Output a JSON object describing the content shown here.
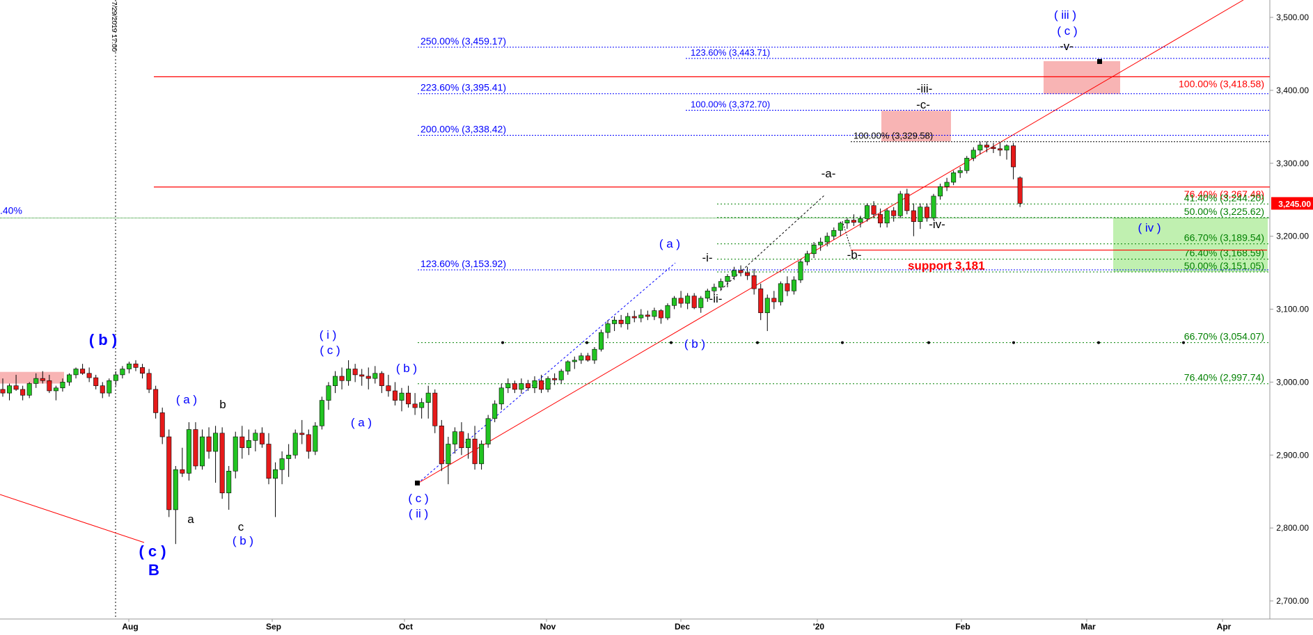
{
  "chart_data": {
    "type": "candlestick",
    "x_ticks": [
      "Aug",
      "Sep",
      "Oct",
      "Nov",
      "Dec",
      "'20",
      "Feb",
      "Mar",
      "Apr"
    ],
    "y_ticks": [
      "3,500.00",
      "3,400.00",
      "3,300.00",
      "3,200.00",
      "3,100.00",
      "3,000.00",
      "2,900.00",
      "2,800.00",
      "2,700.00"
    ],
    "ylim": [
      2684,
      3522
    ],
    "y_tick_values": [
      3500,
      3400,
      3300,
      3200,
      3100,
      3000,
      2900,
      2800,
      2700
    ],
    "last_price_label": "3,245.00",
    "last_price": 3245,
    "vertical_marker_label": "7/29/2019 17:00",
    "left_edge_label": ".40%",
    "fib_levels_left": [
      {
        "label": "250.00% (3,459.17)",
        "value": 3459.17
      },
      {
        "label": "223.60% (3,395.41)",
        "value": 3395.41
      },
      {
        "label": "200.00% (3,338.42)",
        "value": 3338.42
      },
      {
        "label": "123.60% (3,153.92)",
        "value": 3153.92
      }
    ],
    "fib_levels_mid": [
      {
        "label": "123.60% (3,443.71)",
        "value": 3443.71
      },
      {
        "label": "100.00% (3,372.70)",
        "value": 3372.7
      }
    ],
    "fib_level_black": {
      "label": "100.00% (3,329.58)",
      "value": 3329.58
    },
    "red_levels": [
      {
        "label": "100.00% (3,418.58)",
        "value": 3418.58
      },
      {
        "label": "76.40% (3,267.48)",
        "value": 3267.48
      }
    ],
    "green_levels": [
      {
        "label": "41.40% (3,244.20)",
        "value": 3244.2
      },
      {
        "label": "50.00% (3,225.62)",
        "value": 3225.62
      },
      {
        "label": "66.70% (3,189.54)",
        "value": 3189.54
      },
      {
        "label": "76.40% (3,168.59)",
        "value": 3168.59
      },
      {
        "label": "50.00% (3,151.05)",
        "value": 3151.05
      },
      {
        "label": "66.70% (3,054.07)",
        "value": 3054.07
      },
      {
        "label": "76.40% (2,997.74)",
        "value": 2997.74
      }
    ],
    "support_label": "support 3,181",
    "wave_labels": [
      {
        "text": "( b )",
        "color": "#0000ff",
        "bold": true
      },
      {
        "text": "( c )",
        "color": "#0000ff",
        "bold": true
      },
      {
        "text": "B",
        "color": "#0000ff",
        "bold": true
      },
      {
        "text": "( a )",
        "color": "#0000ff",
        "bold": false
      },
      {
        "text": "a",
        "color": "#000000",
        "bold": false
      },
      {
        "text": "b",
        "color": "#000000",
        "bold": false
      },
      {
        "text": "c",
        "color": "#000000",
        "bold": false
      },
      {
        "text": "( b )",
        "color": "#0000ff",
        "bold": false
      },
      {
        "text": "( i )",
        "color": "#0000ff",
        "bold": false
      },
      {
        "text": "( c )",
        "color": "#0000ff",
        "bold": false
      },
      {
        "text": "( a )",
        "color": "#0000ff",
        "bold": false
      },
      {
        "text": "( b )",
        "color": "#0000ff",
        "bold": false
      },
      {
        "text": "( c )",
        "color": "#0000ff",
        "bold": false
      },
      {
        "text": "( ii )",
        "color": "#0000ff",
        "bold": false
      },
      {
        "text": "( a )",
        "color": "#0000ff",
        "bold": false
      },
      {
        "text": "( b )",
        "color": "#0000ff",
        "bold": false
      },
      {
        "text": "-i-",
        "color": "#000000",
        "bold": false
      },
      {
        "text": "-ii-",
        "color": "#000000",
        "bold": false
      },
      {
        "text": "-a-",
        "color": "#000000",
        "bold": false
      },
      {
        "text": "-b-",
        "color": "#000000",
        "bold": false
      },
      {
        "text": "-iii-",
        "color": "#000000",
        "bold": false
      },
      {
        "text": "-c-",
        "color": "#000000",
        "bold": false
      },
      {
        "text": "-iv-",
        "color": "#000000",
        "bold": false
      },
      {
        "text": "-v-",
        "color": "#000000",
        "bold": false
      },
      {
        "text": "( iii )",
        "color": "#0000ff",
        "bold": false
      },
      {
        "text": "( c )",
        "color": "#0000ff",
        "bold": false
      },
      {
        "text": "( iv )",
        "color": "#0000ff",
        "bold": false
      }
    ],
    "candles": [
      [
        2990,
        3005,
        2980,
        2985
      ],
      [
        2985,
        2998,
        2975,
        2995
      ],
      [
        2995,
        3010,
        2988,
        2990
      ],
      [
        2990,
        2995,
        2975,
        2982
      ],
      [
        2982,
        3000,
        2978,
        2998
      ],
      [
        2998,
        3012,
        2992,
        3005
      ],
      [
        3005,
        3015,
        2998,
        3002
      ],
      [
        3002,
        3010,
        2985,
        2988
      ],
      [
        2988,
        2995,
        2975,
        2992
      ],
      [
        2992,
        3005,
        2987,
        3000
      ],
      [
        3000,
        3012,
        2995,
        3010
      ],
      [
        3010,
        3020,
        3005,
        3018
      ],
      [
        3018,
        3025,
        3010,
        3012
      ],
      [
        3012,
        3020,
        3000,
        3006
      ],
      [
        3006,
        3010,
        2990,
        2995
      ],
      [
        2995,
        3000,
        2978,
        2985
      ],
      [
        2985,
        3005,
        2980,
        3002
      ],
      [
        3002,
        3015,
        2995,
        3010
      ],
      [
        3010,
        3022,
        3005,
        3018
      ],
      [
        3018,
        3028,
        3012,
        3025
      ],
      [
        3025,
        3030,
        3015,
        3020
      ],
      [
        3020,
        3025,
        3005,
        3012
      ],
      [
        3012,
        3018,
        2985,
        2990
      ],
      [
        2990,
        2995,
        2950,
        2958
      ],
      [
        2958,
        2965,
        2915,
        2925
      ],
      [
        2925,
        2935,
        2815,
        2825
      ],
      [
        2825,
        2885,
        2778,
        2880
      ],
      [
        2880,
        2910,
        2870,
        2875
      ],
      [
        2875,
        2945,
        2865,
        2935
      ],
      [
        2935,
        2945,
        2880,
        2885
      ],
      [
        2885,
        2935,
        2880,
        2925
      ],
      [
        2925,
        2938,
        2895,
        2905
      ],
      [
        2905,
        2940,
        2862,
        2930
      ],
      [
        2930,
        2938,
        2840,
        2848
      ],
      [
        2848,
        2885,
        2825,
        2878
      ],
      [
        2878,
        2932,
        2868,
        2925
      ],
      [
        2925,
        2940,
        2895,
        2910
      ],
      [
        2910,
        2935,
        2900,
        2920
      ],
      [
        2920,
        2935,
        2905,
        2930
      ],
      [
        2930,
        2938,
        2910,
        2915
      ],
      [
        2915,
        2930,
        2860,
        2868
      ],
      [
        2868,
        2890,
        2815,
        2880
      ],
      [
        2880,
        2905,
        2860,
        2895
      ],
      [
        2895,
        2915,
        2870,
        2900
      ],
      [
        2900,
        2935,
        2895,
        2930
      ],
      [
        2930,
        2948,
        2915,
        2928
      ],
      [
        2928,
        2935,
        2895,
        2905
      ],
      [
        2905,
        2945,
        2900,
        2940
      ],
      [
        2940,
        2980,
        2935,
        2975
      ],
      [
        2975,
        3000,
        2962,
        2995
      ],
      [
        2995,
        3015,
        2985,
        3008
      ],
      [
        3008,
        3020,
        2990,
        3002
      ],
      [
        3002,
        3030,
        2995,
        3018
      ],
      [
        3018,
        3025,
        3000,
        3010
      ],
      [
        3010,
        3018,
        2995,
        3008
      ],
      [
        3008,
        3020,
        2990,
        3005
      ],
      [
        3005,
        3022,
        2998,
        3012
      ],
      [
        3012,
        3015,
        2985,
        2995
      ],
      [
        2995,
        3010,
        2980,
        2988
      ],
      [
        2988,
        3000,
        2968,
        2975
      ],
      [
        2975,
        2992,
        2960,
        2985
      ],
      [
        2985,
        2995,
        2965,
        2970
      ],
      [
        2970,
        2985,
        2955,
        2965
      ],
      [
        2965,
        2978,
        2950,
        2972
      ],
      [
        2972,
        2995,
        2950,
        2985
      ],
      [
        2985,
        2990,
        2930,
        2940
      ],
      [
        2940,
        2948,
        2878,
        2888
      ],
      [
        2888,
        2925,
        2860,
        2915
      ],
      [
        2915,
        2938,
        2902,
        2932
      ],
      [
        2932,
        2945,
        2900,
        2910
      ],
      [
        2910,
        2930,
        2895,
        2922
      ],
      [
        2922,
        2940,
        2880,
        2888
      ],
      [
        2888,
        2920,
        2880,
        2915
      ],
      [
        2915,
        2955,
        2910,
        2950
      ],
      [
        2950,
        2975,
        2945,
        2970
      ],
      [
        2970,
        2998,
        2962,
        2992
      ],
      [
        2992,
        3005,
        2985,
        2998
      ],
      [
        2998,
        3002,
        2985,
        2990
      ],
      [
        2990,
        3005,
        2984,
        2998
      ],
      [
        2998,
        3003,
        2988,
        2992
      ],
      [
        2992,
        3008,
        2985,
        3002
      ],
      [
        3002,
        3010,
        2985,
        2990
      ],
      [
        2990,
        3008,
        2986,
        3005
      ],
      [
        3005,
        3012,
        2996,
        3003
      ],
      [
        3003,
        3018,
        2998,
        3015
      ],
      [
        3015,
        3030,
        3010,
        3028
      ],
      [
        3028,
        3035,
        3018,
        3030
      ],
      [
        3030,
        3040,
        3025,
        3036
      ],
      [
        3036,
        3040,
        3028,
        3030
      ],
      [
        3030,
        3048,
        3025,
        3045
      ],
      [
        3045,
        3072,
        3042,
        3068
      ],
      [
        3068,
        3085,
        3060,
        3080
      ],
      [
        3080,
        3090,
        3070,
        3085
      ],
      [
        3085,
        3092,
        3075,
        3080
      ],
      [
        3080,
        3095,
        3072,
        3090
      ],
      [
        3090,
        3098,
        3082,
        3088
      ],
      [
        3088,
        3100,
        3082,
        3092
      ],
      [
        3092,
        3098,
        3085,
        3090
      ],
      [
        3090,
        3102,
        3085,
        3098
      ],
      [
        3098,
        3100,
        3080,
        3088
      ],
      [
        3088,
        3108,
        3085,
        3105
      ],
      [
        3105,
        3118,
        3100,
        3115
      ],
      [
        3115,
        3125,
        3102,
        3108
      ],
      [
        3108,
        3122,
        3100,
        3118
      ],
      [
        3118,
        3122,
        3100,
        3102
      ],
      [
        3102,
        3118,
        3095,
        3115
      ],
      [
        3115,
        3128,
        3110,
        3125
      ],
      [
        3125,
        3135,
        3118,
        3130
      ],
      [
        3130,
        3142,
        3125,
        3138
      ],
      [
        3138,
        3148,
        3130,
        3145
      ],
      [
        3145,
        3158,
        3140,
        3153
      ],
      [
        3153,
        3160,
        3145,
        3150
      ],
      [
        3150,
        3158,
        3140,
        3146
      ],
      [
        3146,
        3155,
        3120,
        3128
      ],
      [
        3128,
        3135,
        3085,
        3095
      ],
      [
        3095,
        3120,
        3070,
        3115
      ],
      [
        3115,
        3125,
        3100,
        3110
      ],
      [
        3110,
        3138,
        3105,
        3135
      ],
      [
        3135,
        3145,
        3118,
        3125
      ],
      [
        3125,
        3145,
        3120,
        3140
      ],
      [
        3140,
        3168,
        3136,
        3165
      ],
      [
        3165,
        3180,
        3160,
        3176
      ],
      [
        3176,
        3192,
        3170,
        3188
      ],
      [
        3188,
        3198,
        3180,
        3192
      ],
      [
        3192,
        3205,
        3186,
        3200
      ],
      [
        3200,
        3212,
        3195,
        3208
      ],
      [
        3208,
        3220,
        3200,
        3218
      ],
      [
        3218,
        3225,
        3210,
        3222
      ],
      [
        3222,
        3230,
        3214,
        3219
      ],
      [
        3219,
        3228,
        3212,
        3224
      ],
      [
        3224,
        3245,
        3220,
        3242
      ],
      [
        3242,
        3248,
        3225,
        3230
      ],
      [
        3230,
        3238,
        3212,
        3218
      ],
      [
        3218,
        3238,
        3212,
        3235
      ],
      [
        3235,
        3240,
        3220,
        3228
      ],
      [
        3228,
        3262,
        3225,
        3258
      ],
      [
        3258,
        3265,
        3230,
        3235
      ],
      [
        3235,
        3245,
        3200,
        3220
      ],
      [
        3220,
        3245,
        3210,
        3240
      ],
      [
        3240,
        3245,
        3220,
        3225
      ],
      [
        3225,
        3258,
        3222,
        3255
      ],
      [
        3255,
        3272,
        3250,
        3268
      ],
      [
        3268,
        3280,
        3262,
        3274
      ],
      [
        3274,
        3290,
        3270,
        3287
      ],
      [
        3287,
        3295,
        3280,
        3290
      ],
      [
        3290,
        3310,
        3286,
        3307
      ],
      [
        3307,
        3322,
        3303,
        3318
      ],
      [
        3318,
        3330,
        3312,
        3325
      ],
      [
        3325,
        3330,
        3315,
        3322
      ],
      [
        3322,
        3328,
        3314,
        3320
      ],
      [
        3320,
        3329,
        3310,
        3318
      ],
      [
        3318,
        3326,
        3305,
        3324
      ],
      [
        3324,
        3328,
        3278,
        3295
      ],
      [
        3280,
        3282,
        3240,
        3245
      ]
    ]
  }
}
